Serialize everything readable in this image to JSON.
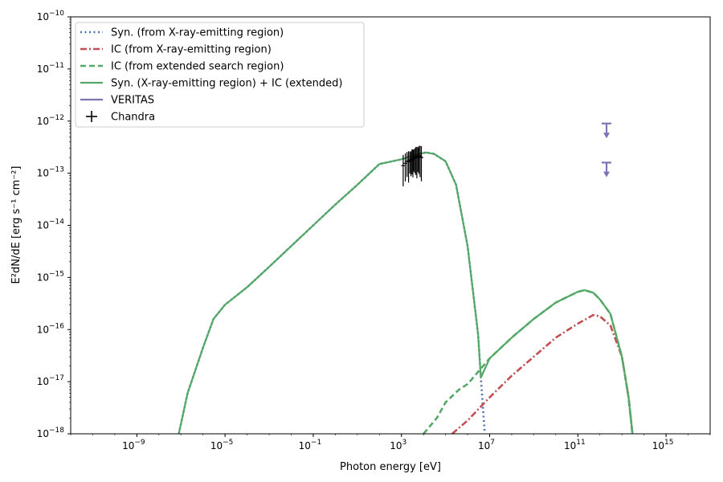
{
  "chart_data": {
    "type": "line",
    "title": "",
    "xlabel": "Photon energy [eV]",
    "ylabel": "E²dN/dE [erg s⁻¹ cm⁻²]",
    "x_scale": "log",
    "y_scale": "log",
    "xlim": [
      1e-12,
      1e+17
    ],
    "ylim": [
      1e-18,
      1e-10
    ],
    "x_ticks": [
      {
        "value": 1e-09,
        "base": "10",
        "exp": "−9"
      },
      {
        "value": 1e-05,
        "base": "10",
        "exp": "−5"
      },
      {
        "value": 0.1,
        "base": "10",
        "exp": "−1"
      },
      {
        "value": 1000.0,
        "base": "10",
        "exp": "3"
      },
      {
        "value": 10000000.0,
        "base": "10",
        "exp": "7"
      },
      {
        "value": 100000000000.0,
        "base": "10",
        "exp": "11"
      },
      {
        "value": 1000000000000000.0,
        "base": "10",
        "exp": "15"
      }
    ],
    "y_ticks": [
      {
        "value": 1e-18,
        "base": "10",
        "exp": "−18"
      },
      {
        "value": 1e-17,
        "base": "10",
        "exp": "−17"
      },
      {
        "value": 1e-16,
        "base": "10",
        "exp": "−16"
      },
      {
        "value": 1e-15,
        "base": "10",
        "exp": "−15"
      },
      {
        "value": 1e-14,
        "base": "10",
        "exp": "−14"
      },
      {
        "value": 1e-13,
        "base": "10",
        "exp": "−13"
      },
      {
        "value": 1e-12,
        "base": "10",
        "exp": "−12"
      },
      {
        "value": 1e-11,
        "base": "10",
        "exp": "−11"
      },
      {
        "value": 1e-10,
        "base": "10",
        "exp": "−10"
      }
    ],
    "legend_position": "top-left",
    "series": [
      {
        "name": "Syn. (from X-ray-emitting region)",
        "color": "#4c72b0",
        "style": "dotted",
        "points": [
          [
            8e-08,
            1e-18
          ],
          [
            2e-07,
            6e-18
          ],
          [
            1e-06,
            4.5e-17
          ],
          [
            3e-06,
            1.6e-16
          ],
          [
            1e-05,
            3e-16
          ],
          [
            0.0001,
            6.5e-16
          ],
          [
            0.001,
            1.6e-15
          ],
          [
            0.01,
            4e-15
          ],
          [
            0.1,
            1e-14
          ],
          [
            1,
            2.5e-14
          ],
          [
            10,
            6e-14
          ],
          [
            100,
            1.5e-13
          ],
          [
            1000,
            1.85e-13
          ],
          [
            5000,
            2.3e-13
          ],
          [
            13000,
            2.5e-13
          ],
          [
            30000,
            2.35e-13
          ],
          [
            100000,
            1.7e-13
          ],
          [
            300000,
            6e-14
          ],
          [
            1000000,
            4e-15
          ],
          [
            3000000,
            8e-17
          ],
          [
            4000000,
            1.2e-17
          ],
          [
            6000000,
            1e-18
          ]
        ]
      },
      {
        "name": "IC (from X-ray-emitting region)",
        "color": "#c44e52",
        "style": "dashdot",
        "points": [
          [
            200000.0,
            1e-18
          ],
          [
            1000000.0,
            1.8e-18
          ],
          [
            10000000.0,
            5e-18
          ],
          [
            100000000.0,
            1.3e-17
          ],
          [
            1000000000.0,
            3e-17
          ],
          [
            10000000000.0,
            7e-17
          ],
          [
            100000000000.0,
            1.3e-16
          ],
          [
            500000000000.0,
            1.9e-16
          ],
          [
            1000000000000.0,
            1.8e-16
          ],
          [
            3000000000000.0,
            1.2e-16
          ],
          [
            10000000000000.0,
            3e-17
          ],
          [
            20000000000000.0,
            5e-18
          ],
          [
            30000000000000.0,
            1e-18
          ]
        ]
      },
      {
        "name": "IC (from extended search region)",
        "color": "#55a868",
        "style": "dashed",
        "points": [
          [
            10000.0,
            1e-18
          ],
          [
            40000.0,
            2e-18
          ],
          [
            100000.0,
            4e-18
          ],
          [
            400000.0,
            7e-18
          ],
          [
            1000000.0,
            9e-18
          ],
          [
            10000000.0,
            2.8e-17
          ],
          [
            100000000.0,
            7e-17
          ],
          [
            1000000000.0,
            1.6e-16
          ],
          [
            10000000000.0,
            3.3e-16
          ],
          [
            100000000000.0,
            5.3e-16
          ],
          [
            200000000000.0,
            5.7e-16
          ],
          [
            500000000000.0,
            5.1e-16
          ],
          [
            1000000000000.0,
            3.8e-16
          ],
          [
            3000000000000.0,
            2e-16
          ],
          [
            10000000000000.0,
            3e-17
          ],
          [
            20000000000000.0,
            5e-18
          ],
          [
            30000000000000.0,
            1e-18
          ]
        ]
      },
      {
        "name": "Syn. (X-ray-emitting region) + IC (extended)",
        "color": "#55a868",
        "style": "solid",
        "points": [
          [
            8e-08,
            1e-18
          ],
          [
            2e-07,
            6e-18
          ],
          [
            1e-06,
            4.5e-17
          ],
          [
            3e-06,
            1.6e-16
          ],
          [
            1e-05,
            3e-16
          ],
          [
            0.0001,
            6.5e-16
          ],
          [
            0.001,
            1.6e-15
          ],
          [
            0.01,
            4e-15
          ],
          [
            0.1,
            1e-14
          ],
          [
            1,
            2.5e-14
          ],
          [
            10,
            6e-14
          ],
          [
            100,
            1.5e-13
          ],
          [
            1000,
            1.85e-13
          ],
          [
            5000,
            2.3e-13
          ],
          [
            13000,
            2.5e-13
          ],
          [
            30000,
            2.35e-13
          ],
          [
            100000,
            1.7e-13
          ],
          [
            300000,
            6e-14
          ],
          [
            1000000,
            4e-15
          ],
          [
            3000000,
            8e-17
          ],
          [
            4000000,
            1.2e-17
          ],
          [
            10000000.0,
            2.8e-17
          ],
          [
            100000000.0,
            7e-17
          ],
          [
            1000000000.0,
            1.6e-16
          ],
          [
            10000000000.0,
            3.3e-16
          ],
          [
            100000000000.0,
            5.3e-16
          ],
          [
            200000000000.0,
            5.7e-16
          ],
          [
            500000000000.0,
            5.1e-16
          ],
          [
            1000000000000.0,
            3.8e-16
          ],
          [
            3000000000000.0,
            2e-16
          ],
          [
            10000000000000.0,
            3e-17
          ],
          [
            20000000000000.0,
            5e-18
          ],
          [
            30000000000000.0,
            1e-18
          ]
        ]
      }
    ],
    "upper_limits": {
      "name": "VERITAS",
      "color": "#8172b2",
      "points": [
        {
          "x": 2000000000000.0,
          "x_low": 1200000000000.0,
          "x_high": 3300000000000.0,
          "y": 9e-13,
          "y_arrow_end": 5e-13
        },
        {
          "x": 2000000000000.0,
          "x_low": 1200000000000.0,
          "x_high": 3300000000000.0,
          "y": 1.6e-13,
          "y_arrow_end": 9e-14
        }
      ]
    },
    "error_bars": {
      "name": "Chandra",
      "color": "#000000",
      "x_range": [
        1200,
        8000
      ],
      "y_center_range": [
        1.4e-13,
        2.2e-13
      ],
      "points": [
        [
          1200,
          1.4e-13
        ],
        [
          1500,
          1.55e-13
        ],
        [
          1800,
          1.7e-13
        ],
        [
          2100,
          1.65e-13
        ],
        [
          2400,
          1.8e-13
        ],
        [
          2700,
          1.75e-13
        ],
        [
          3000,
          1.9e-13
        ],
        [
          3300,
          1.85e-13
        ],
        [
          3600,
          1.95e-13
        ],
        [
          4000,
          2e-13
        ],
        [
          4500,
          2.05e-13
        ],
        [
          5000,
          2e-13
        ],
        [
          5600,
          2.1e-13
        ],
        [
          6200,
          2.15e-13
        ],
        [
          7000,
          2.1e-13
        ],
        [
          8000,
          2e-13
        ]
      ],
      "rel_err": [
        0.6,
        0.55,
        0.5,
        0.6,
        0.45,
        0.5,
        0.5,
        0.55,
        0.45,
        0.5,
        0.55,
        0.6,
        0.5,
        0.55,
        0.6,
        0.65
      ]
    }
  }
}
